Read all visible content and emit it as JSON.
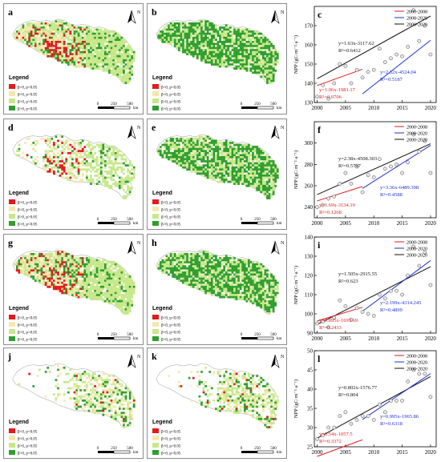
{
  "maps": [
    {
      "letter": "a",
      "palette": "mixed"
    },
    {
      "letter": "b",
      "palette": "green"
    },
    {
      "letter": "d",
      "palette": "mixed_sparse"
    },
    {
      "letter": "e",
      "palette": "green"
    },
    {
      "letter": "g",
      "palette": "mixed"
    },
    {
      "letter": "h",
      "palette": "green"
    },
    {
      "letter": "j",
      "palette": "sparse"
    },
    {
      "letter": "k",
      "palette": "sparse"
    }
  ],
  "map_text": {
    "north": "N",
    "legend_title": "Legend",
    "legend_items": [
      "β<0, p<0.05",
      "β<0, p>0.05",
      "β>0, p>0.05",
      "β>0, p<0.05"
    ],
    "legend_colors": [
      "#e41a1c",
      "#f6e7b0",
      "#c7e88a",
      "#2e9e2e"
    ],
    "scale_labels": [
      "0",
      "250",
      "500"
    ],
    "scale_unit": "km"
  },
  "colors": {
    "p1": "#e41a1c",
    "p2": "#1f2fd6",
    "all": "#111111",
    "point": "#e8e8e8"
  },
  "chart_data": [
    {
      "letter": "c",
      "type": "scatter",
      "ylabel": "NPP  (gC·m⁻²·a⁻¹)",
      "x": [
        2000,
        2001,
        2002,
        2003,
        2004,
        2005,
        2006,
        2007,
        2008,
        2009,
        2010,
        2011,
        2012,
        2013,
        2014,
        2015,
        2016,
        2017,
        2018,
        2019,
        2020
      ],
      "y": [
        133,
        139,
        132,
        140,
        150,
        149,
        140,
        147,
        143,
        146,
        147,
        158,
        151,
        153,
        155,
        154,
        159,
        178,
        162,
        170,
        155
      ],
      "xlim": [
        1999.5,
        2021
      ],
      "ylim": [
        130,
        180
      ],
      "yticks": [
        130,
        140,
        150,
        160,
        170
      ],
      "xticks": [
        2000,
        2005,
        2010,
        2015,
        2020
      ],
      "legend": [
        "2000-2008",
        "2008-2020",
        "2000-2020"
      ],
      "fits": [
        {
          "series": "2000-2020",
          "slope": 1.63,
          "intercept": -3117.62,
          "x0": 2000,
          "x1": 2020,
          "eq": "y=1.63x-3117.62",
          "r2": "R²=0.6412"
        },
        {
          "series": "2000-2008",
          "slope": 1.06,
          "intercept": -1981.17,
          "x0": 2000,
          "x1": 2008,
          "eq": "y=1.06x-1981.17",
          "r2": "R²=0.0706"
        },
        {
          "series": "2008-2020",
          "slope": 2.32,
          "intercept": -4524.04,
          "x0": 2008,
          "x1": 2020,
          "eq": "y=2.32x-4524.04",
          "r2": "R²=0.5187"
        }
      ]
    },
    {
      "letter": "f",
      "type": "scatter",
      "ylabel": "NPP  (gC·m⁻²·a⁻¹)",
      "x": [
        2000,
        2001,
        2002,
        2003,
        2004,
        2005,
        2006,
        2007,
        2008,
        2009,
        2010,
        2011,
        2012,
        2013,
        2014,
        2015,
        2016,
        2017,
        2018,
        2019,
        2020
      ],
      "y": [
        240,
        242,
        248,
        250,
        262,
        272,
        262,
        278,
        254,
        270,
        268,
        285,
        276,
        278,
        280,
        272,
        282,
        308,
        292,
        302,
        272
      ],
      "xlim": [
        1999.5,
        2021
      ],
      "ylim": [
        230,
        320
      ],
      "yticks": [
        240,
        260,
        280,
        300
      ],
      "xticks": [
        2000,
        2005,
        2010,
        2015,
        2020
      ],
      "legend": [
        "2000-2008",
        "2008-2020",
        "2000-2020"
      ],
      "fits": [
        {
          "series": "2000-2020",
          "slope": 2.38,
          "intercept": -4508.303,
          "x0": 2000,
          "x1": 2020,
          "eq": "y=2.38x-4508.303",
          "r2": "R²=0.5797"
        },
        {
          "series": "2000-2008",
          "slope": 1.69,
          "intercept": -3134.19,
          "x0": 2000,
          "x1": 2008,
          "eq": "y=1.69x-3134.19",
          "r2": "R²=0.1268"
        },
        {
          "series": "2008-2020",
          "slope": 3.36,
          "intercept": -6489.398,
          "x0": 2008,
          "x1": 2020,
          "eq": "y=3.36x-6489.398",
          "r2": "R²=0.4588"
        }
      ]
    },
    {
      "letter": "i",
      "type": "scatter",
      "ylabel": "NPP  (gC·m⁻²·a⁻¹)",
      "x": [
        2000,
        2001,
        2002,
        2003,
        2004,
        2005,
        2006,
        2007,
        2008,
        2009,
        2010,
        2011,
        2012,
        2013,
        2014,
        2015,
        2016,
        2017,
        2018,
        2019,
        2020
      ],
      "y": [
        95,
        96,
        93,
        98,
        107,
        104,
        97,
        103,
        101,
        100,
        99,
        110,
        108,
        112,
        112,
        110,
        120,
        135,
        125,
        132,
        115
      ],
      "xlim": [
        1999.5,
        2021
      ],
      "ylim": [
        90,
        140
      ],
      "yticks": [
        90,
        100,
        110,
        120,
        130,
        140
      ],
      "xticks": [
        2000,
        2005,
        2010,
        2015,
        2020
      ],
      "legend": [
        "2000-2008",
        "2008-2020",
        "2000-2020"
      ],
      "fits": [
        {
          "series": "2000-2020",
          "slope": 1.505,
          "intercept": -2915.55,
          "x0": 2000,
          "x1": 2020,
          "eq": "y=1.505x-2915.55",
          "r2": "R²=0.623"
        },
        {
          "series": "2000-2008",
          "slope": 0.895,
          "intercept": -1693.69,
          "x0": 2000,
          "x1": 2008,
          "eq": "y=0.895x-1693.69",
          "r2": "R²=0.2433"
        },
        {
          "series": "2008-2020",
          "slope": 2.199,
          "intercept": -4314.245,
          "x0": 2008,
          "x1": 2020,
          "eq": "y=2.199x-4314.245",
          "r2": "R²=0.4899"
        }
      ]
    },
    {
      "letter": "l",
      "type": "scatter",
      "ylabel": "NPP  (gC·m⁻²·a⁻¹)",
      "x": [
        2000,
        2001,
        2002,
        2003,
        2004,
        2005,
        2006,
        2007,
        2008,
        2009,
        2010,
        2011,
        2012,
        2013,
        2014,
        2015,
        2016,
        2017,
        2018,
        2019,
        2020
      ],
      "y": [
        27,
        28,
        30,
        30,
        33,
        34,
        31,
        32,
        33,
        33,
        32,
        36,
        34,
        37,
        37,
        37,
        42,
        45,
        44,
        44,
        38
      ],
      "xlim": [
        1999.5,
        2021
      ],
      "ylim": [
        25,
        50
      ],
      "yticks": [
        25,
        30,
        35,
        40,
        45,
        50
      ],
      "xticks": [
        2000,
        2005,
        2010,
        2015,
        2020
      ],
      "legend": [
        "2000-2008",
        "2008-2020",
        "2000-2020"
      ],
      "fits": [
        {
          "series": "2000-2020",
          "slope": 0.802,
          "intercept": -1576.77,
          "x0": 2000,
          "x1": 2020,
          "eq": "y=0.802x-1576.77",
          "r2": "R²=0.804"
        },
        {
          "series": "2000-2008",
          "slope": 0.54,
          "intercept": -1057.5,
          "x0": 2000,
          "x1": 2008,
          "eq": "y=0.54x-1057.5",
          "r2": "R²=0.3372"
        },
        {
          "series": "2008-2020",
          "slope": 0.995,
          "intercept": -1965.86,
          "x0": 2008,
          "x1": 2020,
          "eq": "y=0.995x-1965.86",
          "r2": "R²=0.6318"
        }
      ]
    }
  ]
}
